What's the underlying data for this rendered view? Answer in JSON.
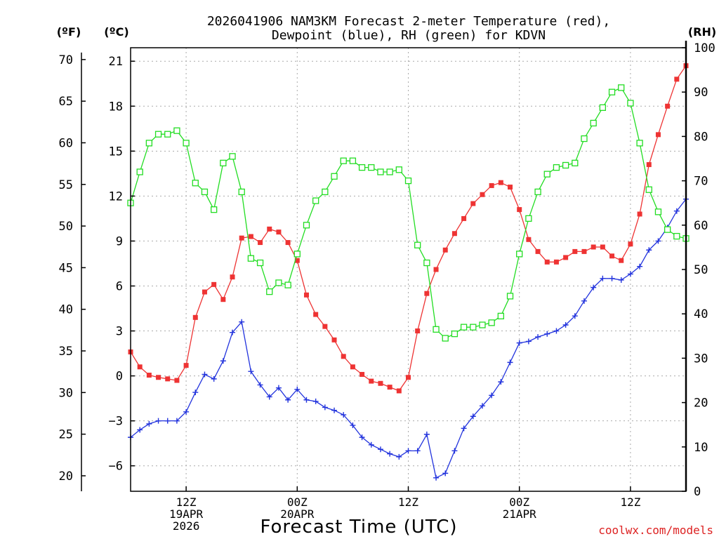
{
  "chart_data": {
    "type": "line",
    "title_line1": "2026041906 NAM3KM Forecast 2-meter Temperature (red),",
    "title_line2": "Dewpoint (blue), RH (green) for KDVN",
    "xlabel": "Forecast Time (UTC)",
    "credit": "coolwx.com/models",
    "axis_titles": {
      "fahrenheit": "(ºF)",
      "celsius": "(ºC)",
      "rh": "(RH)"
    },
    "x_range_hours": [
      0,
      60
    ],
    "celsius_range": [
      -7.7,
      21.9
    ],
    "rh_range": [
      0,
      100
    ],
    "celsius_ticks": [
      "21",
      "18",
      "15",
      "12",
      "9",
      "6",
      "3",
      "0",
      "−3",
      "−6"
    ],
    "celsius_tick_values": [
      21,
      18,
      15,
      12,
      9,
      6,
      3,
      0,
      -3,
      -6
    ],
    "fahrenheit_ticks": [
      "70",
      "65",
      "60",
      "55",
      "50",
      "45",
      "40",
      "35",
      "30",
      "25",
      "20"
    ],
    "fahrenheit_tick_values": [
      70,
      65,
      60,
      55,
      50,
      45,
      40,
      35,
      30,
      25,
      20
    ],
    "rh_ticks": [
      "100",
      "90",
      "80",
      "70",
      "60",
      "50",
      "40",
      "30",
      "20",
      "10",
      "0"
    ],
    "rh_tick_values": [
      100,
      90,
      80,
      70,
      60,
      50,
      40,
      30,
      20,
      10,
      0
    ],
    "x_ticks": [
      {
        "hour": 6,
        "lines": [
          "12Z",
          "19APR",
          "2026"
        ]
      },
      {
        "hour": 18,
        "lines": [
          "00Z",
          "20APR"
        ]
      },
      {
        "hour": 30,
        "lines": [
          "12Z"
        ]
      },
      {
        "hour": 42,
        "lines": [
          "00Z",
          "21APR"
        ]
      },
      {
        "hour": 54,
        "lines": [
          "12Z"
        ]
      }
    ],
    "series": [
      {
        "name": "2-meter Temperature",
        "unit": "C",
        "color": "#ee3333",
        "marker": "filled-square",
        "values": [
          1.6,
          0.6,
          0.05,
          -0.1,
          -0.2,
          -0.3,
          0.7,
          3.9,
          5.6,
          6.1,
          5.1,
          6.6,
          9.2,
          9.3,
          8.9,
          9.8,
          9.6,
          8.9,
          7.7,
          5.4,
          4.1,
          3.3,
          2.4,
          1.3,
          0.6,
          0.1,
          -0.35,
          -0.5,
          -0.75,
          -1.0,
          -0.1,
          3.0,
          5.5,
          7.1,
          8.4,
          9.5,
          10.5,
          11.5,
          12.1,
          12.7,
          12.9,
          12.6,
          11.1,
          9.1,
          8.3,
          7.6,
          7.6,
          7.9,
          8.3,
          8.3,
          8.6,
          8.6,
          8.0,
          7.7,
          8.8,
          10.8,
          14.1,
          16.1,
          18.0,
          19.8,
          20.7
        ]
      },
      {
        "name": "Dewpoint",
        "unit": "C",
        "color": "#2233dd",
        "marker": "plus",
        "values": [
          -4.1,
          -3.6,
          -3.2,
          -3.0,
          -3.0,
          -3.0,
          -2.4,
          -1.1,
          0.1,
          -0.2,
          1.0,
          2.9,
          3.6,
          0.3,
          -0.6,
          -1.4,
          -0.8,
          -1.6,
          -0.9,
          -1.6,
          -1.7,
          -2.1,
          -2.3,
          -2.6,
          -3.3,
          -4.1,
          -4.6,
          -4.9,
          -5.2,
          -5.4,
          -5.0,
          -5.0,
          -3.9,
          -6.8,
          -6.5,
          -5.0,
          -3.5,
          -2.7,
          -2.0,
          -1.3,
          -0.4,
          0.9,
          2.2,
          2.3,
          2.6,
          2.8,
          3.0,
          3.4,
          4.0,
          5.0,
          5.9,
          6.5,
          6.5,
          6.4,
          6.8,
          7.3,
          8.4,
          9.0,
          9.9,
          11.0,
          11.8
        ]
      },
      {
        "name": "Relative Humidity",
        "unit": "%",
        "color": "#22dd22",
        "marker": "open-square",
        "values": [
          65,
          72,
          78.5,
          80.5,
          80.5,
          81.3,
          78.5,
          69.5,
          67.5,
          63.5,
          74,
          75.5,
          67.5,
          52.5,
          51.5,
          45,
          47,
          46.5,
          53.5,
          60,
          65.5,
          67.5,
          71,
          74.5,
          74.5,
          73,
          73,
          72,
          72,
          72.5,
          70,
          55.5,
          51.5,
          36.5,
          34.5,
          35.5,
          37,
          37,
          37.5,
          38,
          39.5,
          44,
          53.5,
          61.5,
          67.5,
          71.5,
          73,
          73.5,
          74,
          79.5,
          83,
          86.5,
          90,
          91,
          87.5,
          78.5,
          68,
          63,
          59,
          57.5,
          57
        ]
      }
    ]
  }
}
